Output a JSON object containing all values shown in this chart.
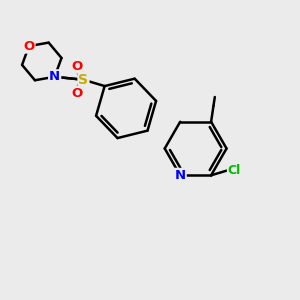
{
  "background_color": "#ebebeb",
  "bond_color": "#000000",
  "atom_colors": {
    "N": "#0000ff",
    "O": "#ff0000",
    "S": "#ccaa00",
    "Cl": "#00bb00",
    "C": "#000000"
  },
  "figsize": [
    3.0,
    3.0
  ],
  "dpi": 100
}
